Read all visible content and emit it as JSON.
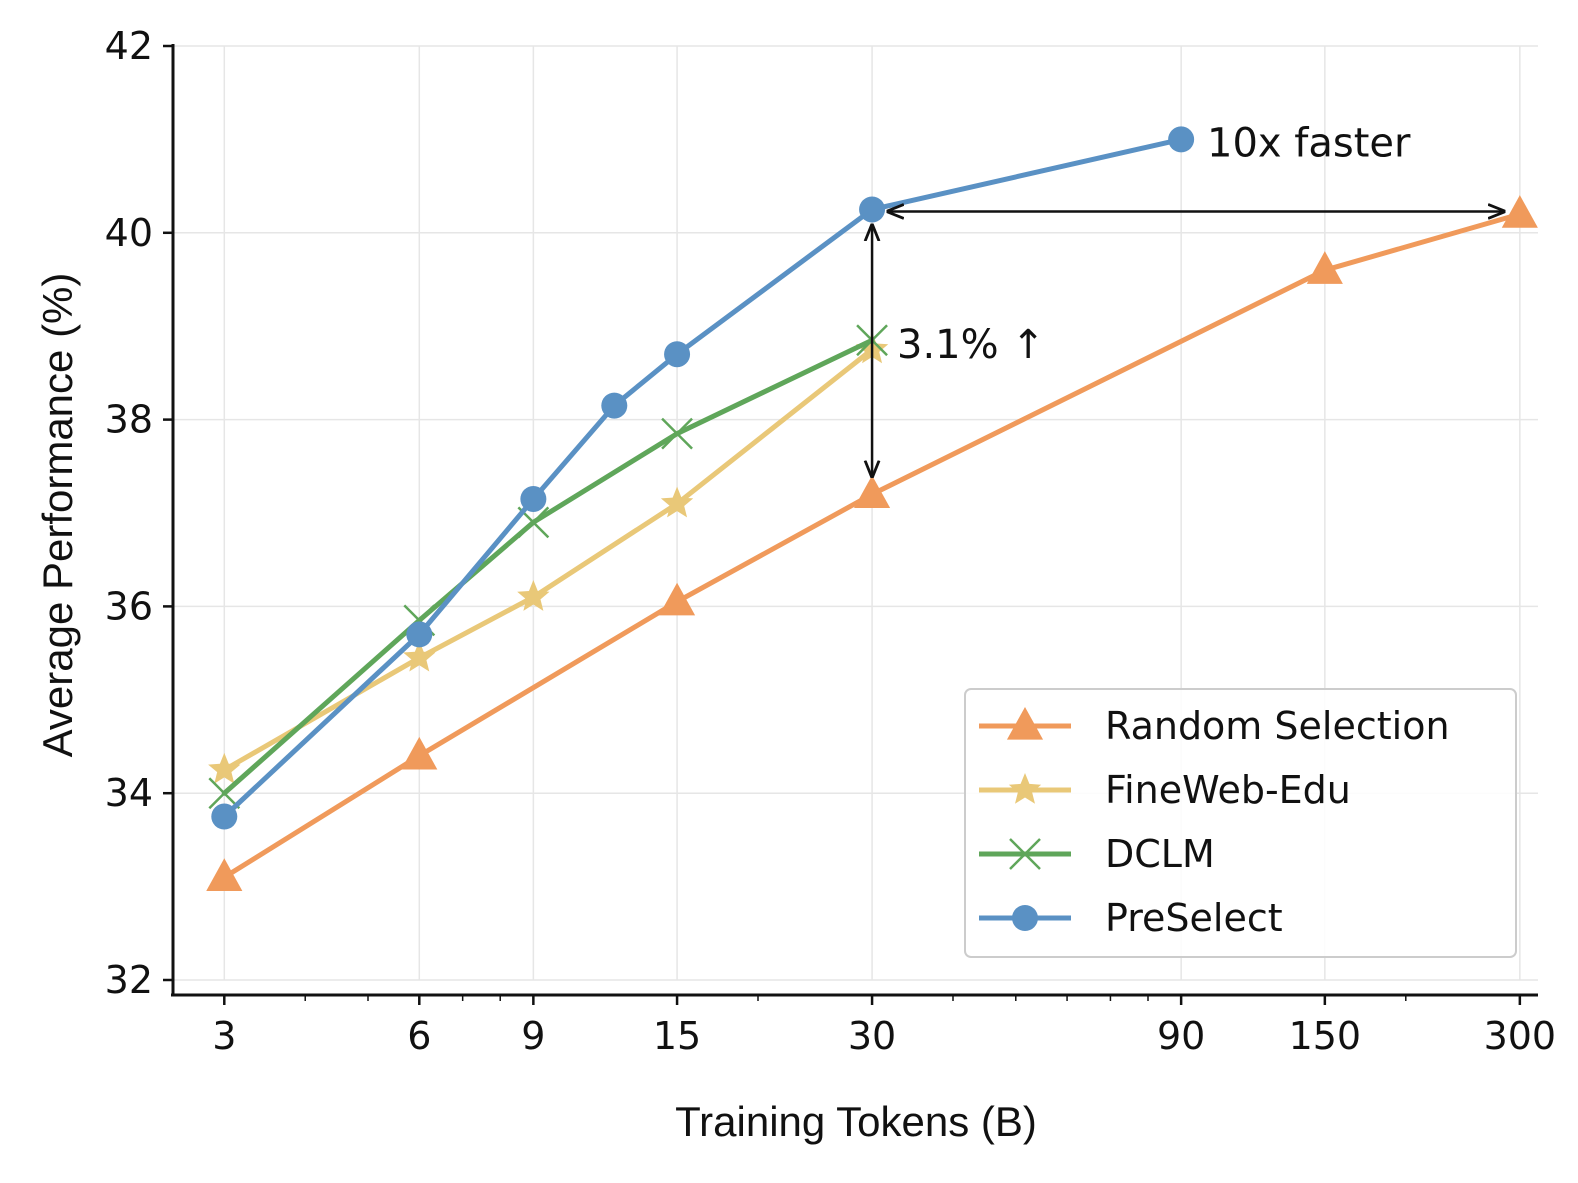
{
  "chart_data": {
    "type": "line",
    "xlabel": "Training Tokens (B)",
    "ylabel": "Average Performance (%)",
    "xscale": "log",
    "xlim": [
      2.5,
      320
    ],
    "ylim": [
      32,
      42
    ],
    "xticks": [
      3,
      6,
      9,
      15,
      30,
      90,
      150,
      300
    ],
    "xtick_labels": [
      "3",
      "6",
      "9",
      "15",
      "30",
      "90",
      "150",
      "300"
    ],
    "yticks": [
      32,
      34,
      36,
      38,
      40,
      42
    ],
    "ytick_labels": [
      "32",
      "34",
      "36",
      "38",
      "40",
      "42"
    ],
    "grid": true,
    "legend_position": "lower-right",
    "series": [
      {
        "name": "Random Selection",
        "color": "#F09A5B",
        "marker": "triangle",
        "x": [
          3,
          6,
          15,
          30,
          150,
          300
        ],
        "y": [
          33.1,
          34.4,
          36.05,
          37.2,
          39.6,
          40.2
        ]
      },
      {
        "name": "FineWeb-Edu",
        "color": "#E9C878",
        "marker": "star",
        "x": [
          3,
          6,
          9,
          15,
          30
        ],
        "y": [
          34.25,
          35.45,
          36.1,
          37.1,
          38.75
        ]
      },
      {
        "name": "DCLM",
        "color": "#5FA65A",
        "marker": "x",
        "x": [
          3,
          6,
          9,
          15,
          30
        ],
        "y": [
          34.0,
          35.85,
          36.9,
          37.85,
          38.85
        ]
      },
      {
        "name": "PreSelect",
        "color": "#5A91C4",
        "marker": "circle",
        "x": [
          3,
          6,
          9,
          12,
          15,
          30,
          90
        ],
        "y": [
          33.75,
          35.7,
          37.15,
          38.15,
          38.7,
          40.25,
          41.0
        ]
      }
    ],
    "annotations": [
      {
        "text": "10x faster",
        "x": 100,
        "y": 41.0
      },
      {
        "text": "3.1% ↑",
        "x": 35,
        "y": 38.7
      }
    ]
  }
}
